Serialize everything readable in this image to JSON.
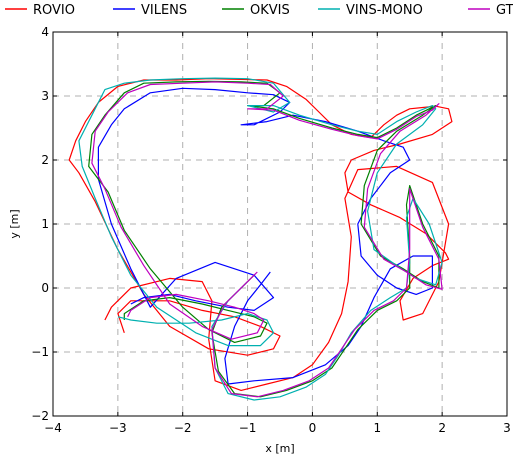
{
  "chart_data": {
    "type": "line",
    "title": "",
    "xlabel": "x [m]",
    "ylabel": "y [m]",
    "xlim": [
      -4,
      3
    ],
    "ylim": [
      -2,
      4
    ],
    "xticks": [
      -4,
      -3,
      -2,
      -1,
      0,
      1,
      2,
      3
    ],
    "yticks": [
      -2,
      -1,
      0,
      1,
      2,
      3,
      4
    ],
    "xtick_labels": [
      "−4",
      "−3",
      "−2",
      "−1",
      "0",
      "1",
      "2",
      "3"
    ],
    "ytick_labels": [
      "−2",
      "−1",
      "0",
      "1",
      "2",
      "3",
      "4"
    ],
    "grid": true,
    "legend_position": "top",
    "series": [
      {
        "name": "ROVIO",
        "color": "#ff0000",
        "x": [
          -2.9,
          -3.0,
          -2.8,
          -2.2,
          -1.7,
          -1.2,
          -0.8,
          -0.5,
          -0.6,
          -1.0,
          -1.6,
          -2.2,
          -2.6,
          -3.0,
          -3.35,
          -3.6,
          -3.75,
          -3.65,
          -3.5,
          -3.3,
          -3.0,
          -2.6,
          -2.1,
          -1.6,
          -1.1,
          -0.7,
          -0.4,
          -0.1,
          0.1,
          0.3,
          0.6,
          0.9,
          1.1,
          1.3,
          1.5,
          1.7,
          1.9,
          2.1,
          2.15,
          1.85,
          1.35,
          0.95,
          0.6,
          0.5,
          0.55,
          0.9,
          1.35,
          1.75,
          2.05,
          2.1,
          1.85,
          1.55,
          1.35,
          1.4,
          1.7,
          1.95,
          2.1,
          1.85,
          1.3,
          0.7,
          0.5,
          0.6,
          0.55,
          0.45,
          0.25,
          0.0,
          -0.3,
          -0.7,
          -1.1,
          -1.5,
          -1.6,
          -1.55,
          -1.7,
          -2.2,
          -2.8,
          -3.1,
          -3.2
        ],
        "y": [
          -0.7,
          -0.4,
          -0.2,
          -0.2,
          -0.35,
          -0.45,
          -0.6,
          -0.75,
          -0.95,
          -1.05,
          -0.95,
          -0.6,
          -0.1,
          0.6,
          1.35,
          1.8,
          2.0,
          2.3,
          2.6,
          2.9,
          3.15,
          3.25,
          3.25,
          3.27,
          3.26,
          3.25,
          3.15,
          2.95,
          2.75,
          2.55,
          2.4,
          2.35,
          2.55,
          2.7,
          2.8,
          2.82,
          2.84,
          2.8,
          2.6,
          2.4,
          2.25,
          2.15,
          2.0,
          1.8,
          1.5,
          1.3,
          1.1,
          0.85,
          0.55,
          0.45,
          0.35,
          0.15,
          -0.2,
          -0.5,
          -0.4,
          0.1,
          1.0,
          1.65,
          1.9,
          1.85,
          1.4,
          0.8,
          0.1,
          -0.4,
          -0.85,
          -1.2,
          -1.4,
          -1.5,
          -1.6,
          -1.45,
          -0.8,
          -0.2,
          0.1,
          0.15,
          0.0,
          -0.3,
          -0.5
        ]
      },
      {
        "name": "VILENS",
        "color": "#0000ff",
        "x": [
          -2.8,
          -2.6,
          -2.2,
          -1.8,
          -1.3,
          -0.9,
          -0.6,
          -0.9,
          -1.5,
          -2.1,
          -2.5,
          -2.8,
          -3.1,
          -3.3,
          -3.3,
          -3.1,
          -2.9,
          -2.5,
          -2.0,
          -1.5,
          -1.0,
          -0.6,
          -0.35,
          -0.5,
          -0.9,
          -1.1,
          -0.7,
          -0.3,
          0.2,
          0.7,
          1.1,
          1.4,
          1.5,
          1.2,
          0.9,
          0.7,
          0.75,
          1.0,
          1.3,
          1.6,
          1.85,
          1.85,
          1.55,
          1.2,
          0.95,
          0.75,
          0.55,
          0.2,
          -0.3,
          -0.9,
          -1.3,
          -1.35,
          -1.2,
          -1.0,
          -0.8,
          -0.65
        ],
        "y": [
          -0.25,
          -0.15,
          -0.1,
          -0.2,
          -0.3,
          -0.35,
          -0.15,
          0.2,
          0.4,
          0.15,
          -0.3,
          0.3,
          1.0,
          1.7,
          2.2,
          2.55,
          2.8,
          3.05,
          3.12,
          3.1,
          3.05,
          3.02,
          2.9,
          2.75,
          2.55,
          2.55,
          2.6,
          2.7,
          2.6,
          2.45,
          2.3,
          2.2,
          2.0,
          1.8,
          1.4,
          1.0,
          0.5,
          0.2,
          0.0,
          -0.1,
          0.0,
          0.5,
          0.5,
          0.3,
          -0.15,
          -0.6,
          -0.9,
          -1.2,
          -1.4,
          -1.45,
          -1.5,
          -1.1,
          -0.6,
          -0.2,
          0.05,
          0.25
        ]
      },
      {
        "name": "OKVIS",
        "color": "#008000",
        "x": [
          -2.9,
          -2.9,
          -2.6,
          -2.2,
          -1.7,
          -1.3,
          -0.9,
          -0.7,
          -0.8,
          -1.2,
          -1.6,
          -2.0,
          -2.5,
          -2.9,
          -3.15,
          -3.45,
          -3.4,
          -3.2,
          -2.9,
          -2.6,
          -2.1,
          -1.6,
          -1.1,
          -0.7,
          -0.5,
          -0.75,
          -1.0,
          -0.6,
          -0.2,
          0.3,
          0.7,
          1.0,
          1.3,
          1.6,
          1.8,
          1.9,
          1.7,
          1.3,
          1.0,
          0.8,
          0.75,
          1.05,
          1.4,
          1.7,
          1.95,
          1.95,
          1.7,
          1.5,
          1.45,
          1.5,
          1.5,
          1.3,
          1.0,
          0.7,
          0.5,
          0.3,
          0.0,
          -0.4,
          -0.8,
          -1.2,
          -1.45,
          -1.55,
          -1.4,
          -1.1,
          -0.9
        ],
        "y": [
          -0.5,
          -0.4,
          -0.2,
          -0.15,
          -0.25,
          -0.35,
          -0.45,
          -0.55,
          -0.75,
          -0.85,
          -0.65,
          -0.3,
          0.3,
          0.9,
          1.5,
          1.9,
          2.4,
          2.7,
          3.05,
          3.2,
          3.22,
          3.23,
          3.22,
          3.2,
          3.05,
          2.85,
          2.85,
          2.8,
          2.65,
          2.5,
          2.4,
          2.35,
          2.5,
          2.7,
          2.8,
          2.85,
          2.7,
          2.45,
          2.15,
          1.6,
          1.0,
          0.5,
          0.3,
          0.1,
          0.0,
          0.5,
          1.0,
          1.6,
          1.3,
          0.5,
          0.0,
          -0.2,
          -0.35,
          -0.65,
          -0.95,
          -1.25,
          -1.45,
          -1.6,
          -1.7,
          -1.65,
          -1.3,
          -0.7,
          -0.3,
          0.0,
          0.2
        ]
      },
      {
        "name": "VINS-MONO",
        "color": "#00b0b0",
        "x": [
          -3.0,
          -2.8,
          -2.4,
          -1.9,
          -1.4,
          -1.0,
          -0.7,
          -0.6,
          -0.8,
          -1.3,
          -1.8,
          -2.4,
          -2.8,
          -3.1,
          -3.35,
          -3.55,
          -3.6,
          -3.4,
          -3.2,
          -2.9,
          -2.5,
          -2.0,
          -1.5,
          -1.0,
          -0.6,
          -0.35,
          -0.6,
          -1.0,
          -0.6,
          -0.2,
          0.3,
          0.7,
          1.0,
          1.3,
          1.6,
          1.85,
          1.9,
          1.7,
          1.3,
          1.0,
          0.85,
          0.95,
          1.3,
          1.6,
          1.9,
          2.0,
          1.8,
          1.55,
          1.45,
          1.5,
          1.45,
          1.2,
          0.9,
          0.6,
          0.4,
          0.2,
          -0.1,
          -0.5,
          -0.9,
          -1.3,
          -1.5,
          -1.55,
          -1.3,
          -1.0
        ],
        "y": [
          -0.45,
          -0.5,
          -0.55,
          -0.55,
          -0.5,
          -0.4,
          -0.5,
          -0.7,
          -0.9,
          -0.9,
          -0.7,
          -0.3,
          0.2,
          0.8,
          1.4,
          1.9,
          2.3,
          2.7,
          3.1,
          3.2,
          3.25,
          3.27,
          3.28,
          3.27,
          3.2,
          2.9,
          2.75,
          2.85,
          2.85,
          2.7,
          2.55,
          2.45,
          2.4,
          2.6,
          2.75,
          2.85,
          2.8,
          2.55,
          2.25,
          1.8,
          1.2,
          0.6,
          0.35,
          0.15,
          0.05,
          0.4,
          1.0,
          1.4,
          1.1,
          0.4,
          0.0,
          -0.15,
          -0.35,
          -0.7,
          -1.05,
          -1.35,
          -1.55,
          -1.7,
          -1.75,
          -1.65,
          -1.25,
          -0.6,
          -0.2,
          0.1
        ]
      },
      {
        "name": "GT",
        "color": "#bf00bf",
        "x": [
          -2.85,
          -2.8,
          -2.5,
          -2.1,
          -1.6,
          -1.2,
          -0.9,
          -0.75,
          -0.85,
          -1.25,
          -1.7,
          -2.2,
          -2.6,
          -2.95,
          -3.2,
          -3.4,
          -3.35,
          -3.15,
          -2.85,
          -2.5,
          -2.0,
          -1.5,
          -1.0,
          -0.65,
          -0.45,
          -0.7,
          -1.0,
          -0.6,
          -0.2,
          0.3,
          0.7,
          1.0,
          1.3,
          1.6,
          1.85,
          1.95,
          1.75,
          1.35,
          1.05,
          0.85,
          0.8,
          1.1,
          1.45,
          1.75,
          2.0,
          1.95,
          1.7,
          1.5,
          1.5,
          1.45,
          1.25,
          0.95,
          0.65,
          0.45,
          0.25,
          -0.05,
          -0.45,
          -0.85,
          -1.25,
          -1.5,
          -1.55,
          -1.35,
          -1.05,
          -0.85
        ],
        "y": [
          -0.45,
          -0.35,
          -0.15,
          -0.1,
          -0.2,
          -0.3,
          -0.4,
          -0.5,
          -0.7,
          -0.8,
          -0.6,
          -0.25,
          0.35,
          0.95,
          1.55,
          1.95,
          2.45,
          2.75,
          3.05,
          3.18,
          3.2,
          3.22,
          3.2,
          3.18,
          3.0,
          2.8,
          2.8,
          2.78,
          2.62,
          2.48,
          2.38,
          2.33,
          2.48,
          2.68,
          2.78,
          2.88,
          2.7,
          2.45,
          2.1,
          1.55,
          0.95,
          0.45,
          0.25,
          0.05,
          -0.02,
          0.45,
          0.95,
          1.55,
          0.6,
          0.0,
          -0.2,
          -0.35,
          -0.65,
          -0.95,
          -1.25,
          -1.45,
          -1.6,
          -1.7,
          -1.65,
          -1.25,
          -0.65,
          -0.25,
          0.05,
          0.25
        ]
      }
    ]
  }
}
